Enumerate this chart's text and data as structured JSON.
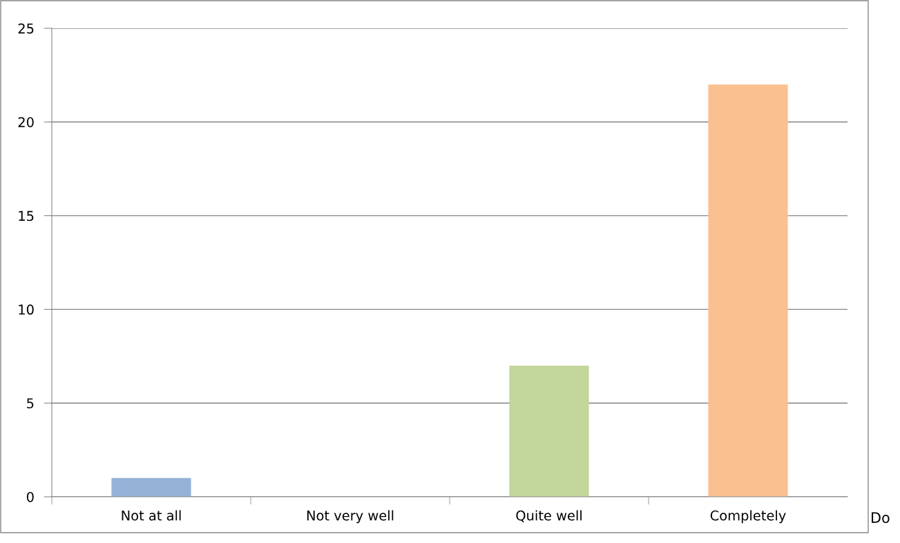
{
  "chart_data": {
    "type": "bar",
    "categories": [
      "Not at all",
      "Not very well",
      "Quite well",
      "Completely"
    ],
    "values": [
      1,
      0,
      7,
      22
    ],
    "colors": [
      "#95b3d7",
      "#d99694",
      "#c3d69b",
      "#fac090"
    ],
    "ylim": [
      0,
      25
    ],
    "yticks": [
      0,
      5,
      10,
      15,
      20,
      25
    ],
    "grid": "y",
    "annotations": [
      "Do"
    ]
  }
}
